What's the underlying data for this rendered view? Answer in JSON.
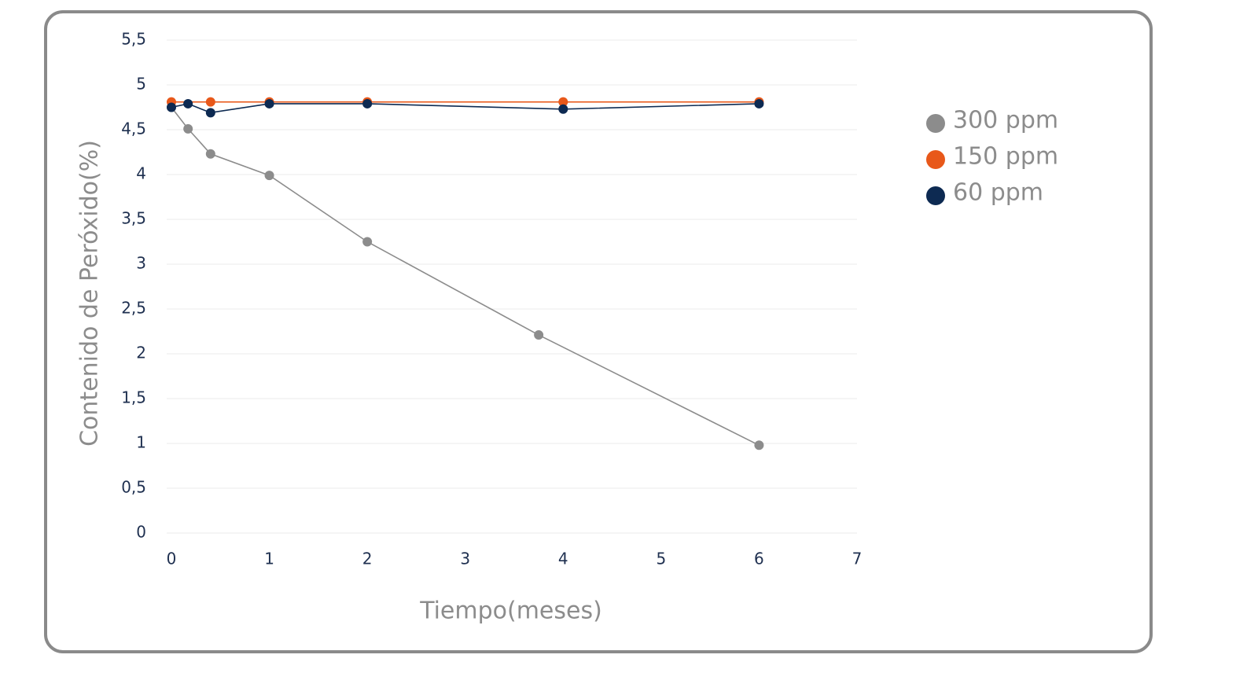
{
  "chart_data": {
    "type": "line",
    "xlabel": "Tiempo(meses)",
    "ylabel": "Contenido de Peróxido(%)",
    "xlim": [
      0,
      7
    ],
    "xticks": [
      0,
      1,
      2,
      3,
      4,
      5,
      6,
      7
    ],
    "ylim": [
      0,
      5.5
    ],
    "yticks": [
      0,
      {
        "value": 0.5,
        "label": "0,5"
      },
      1,
      {
        "value": 1.5,
        "label": "1,5"
      },
      2,
      {
        "value": 2.5,
        "label": "2,5"
      },
      3,
      {
        "value": 3.5,
        "label": "3,5"
      },
      4,
      {
        "value": 4.5,
        "label": "4,5"
      },
      5,
      {
        "value": 5.5,
        "label": "5,5"
      }
    ],
    "grid": true,
    "legend": "right",
    "series": [
      {
        "name": "300 ppm",
        "color": "#8c8c8c",
        "x": [
          0,
          0.17,
          0.4,
          1,
          2,
          3.75,
          6
        ],
        "values": [
          4.75,
          4.51,
          4.23,
          3.99,
          3.25,
          2.21,
          0.98
        ]
      },
      {
        "name": "150 ppm",
        "color": "#e8581a",
        "x": [
          0,
          0.4,
          1,
          2,
          4,
          6
        ],
        "values": [
          4.81,
          4.81,
          4.81,
          4.81,
          4.81,
          4.81
        ]
      },
      {
        "name": "60 ppm",
        "color": "#0d2a52",
        "x": [
          0,
          0.17,
          0.4,
          1,
          2,
          4,
          6
        ],
        "values": [
          4.75,
          4.79,
          4.69,
          4.79,
          4.79,
          4.73,
          4.79
        ]
      }
    ]
  }
}
